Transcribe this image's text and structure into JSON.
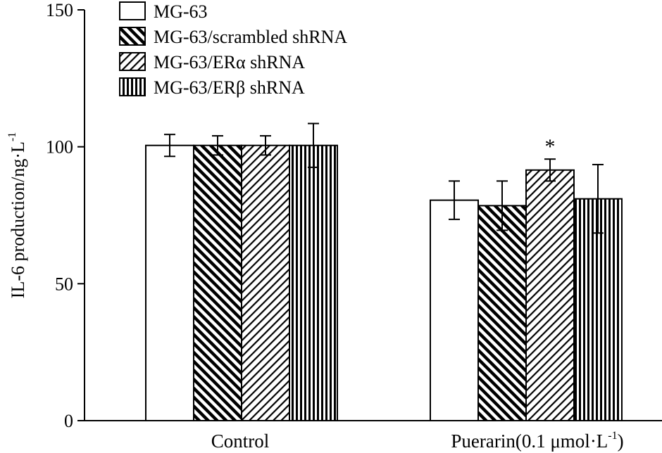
{
  "chart_data": {
    "type": "bar",
    "title": "",
    "ylabel": {
      "main": "IL-6 production/ng·L",
      "sup": "-1"
    },
    "xlabel": "",
    "ylim": [
      0,
      150
    ],
    "yticks": [
      0,
      50,
      100,
      150
    ],
    "categories": [
      {
        "label": "Control",
        "sup": ""
      },
      {
        "label": "Puerarin(0.1 μmol·L",
        "sup": "-1",
        "suffix": ")"
      }
    ],
    "series": [
      {
        "name": "MG-63",
        "pattern": "none",
        "values": [
          100.5,
          80.5
        ],
        "errors": [
          4,
          7
        ]
      },
      {
        "name": "MG-63/scrambled shRNA",
        "pattern": "backslash",
        "values": [
          100.5,
          78.5
        ],
        "errors": [
          3.5,
          9
        ]
      },
      {
        "name": "MG-63/ERα shRNA",
        "pattern": "slash",
        "values": [
          100.5,
          91.5
        ],
        "errors": [
          3.5,
          4
        ]
      },
      {
        "name": "MG-63/ERβ shRNA",
        "pattern": "vertical",
        "values": [
          100.5,
          81
        ],
        "errors": [
          8,
          12.5
        ]
      }
    ],
    "annotations": [
      {
        "text": "*",
        "series": 2,
        "category": 1
      }
    ],
    "grid": false,
    "legend": "top-left"
  }
}
